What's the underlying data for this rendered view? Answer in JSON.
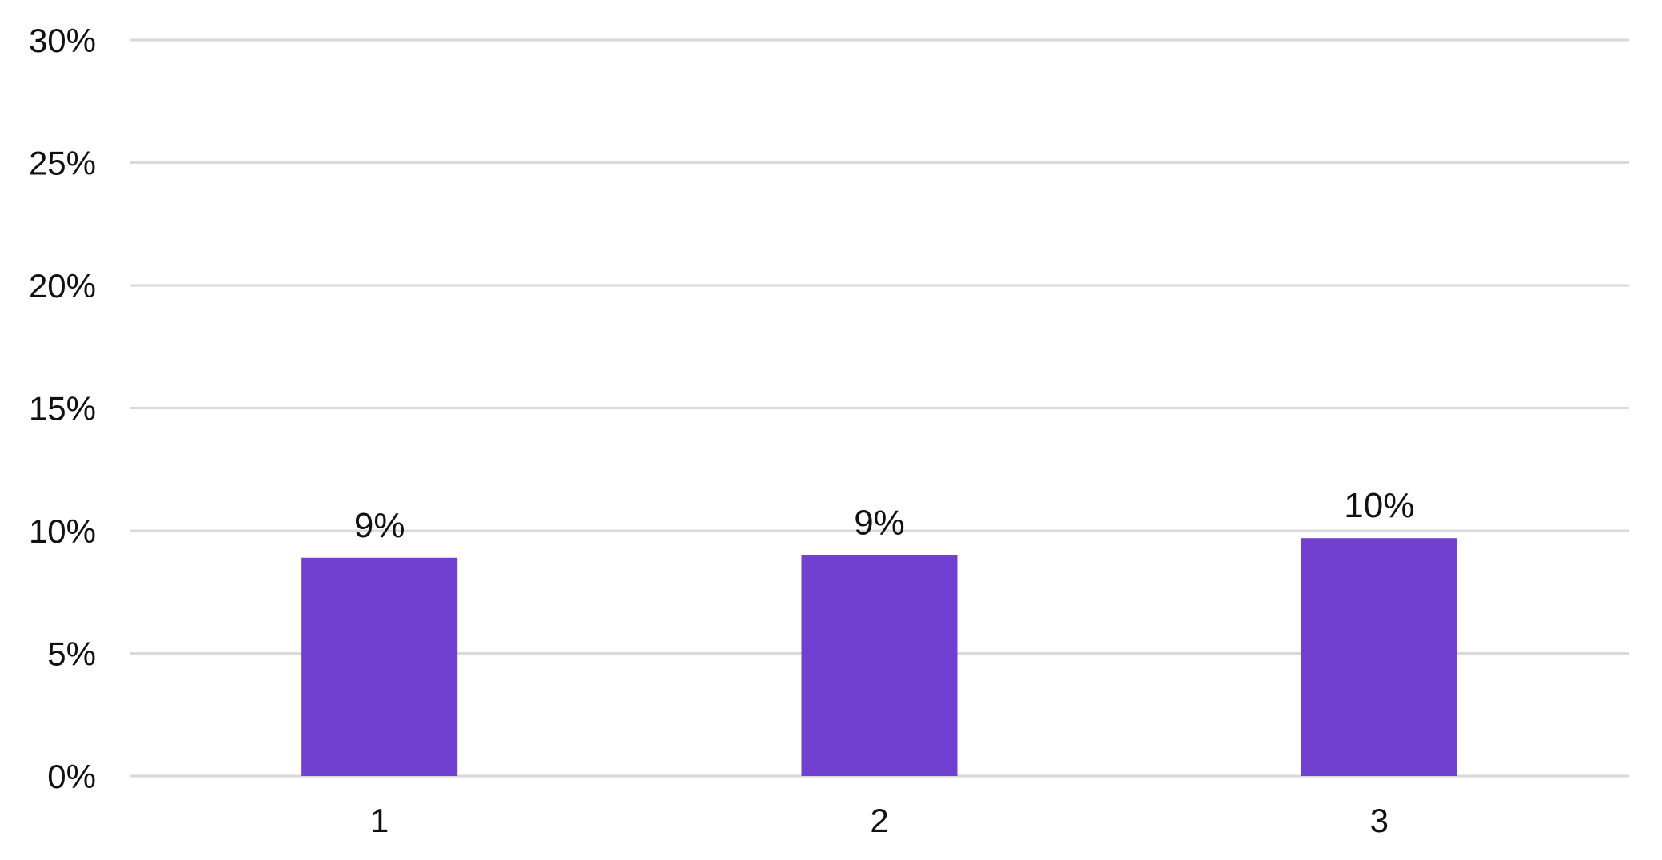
{
  "chart_data": {
    "type": "bar",
    "categories": [
      "1",
      "2",
      "3"
    ],
    "values": [
      8.9,
      9.0,
      9.7
    ],
    "data_labels": [
      "9%",
      "9%",
      "10%"
    ],
    "y_ticks": [
      "0%",
      "5%",
      "10%",
      "15%",
      "20%",
      "25%",
      "30%"
    ],
    "ylim": [
      0,
      30
    ],
    "title": "",
    "xlabel": "",
    "ylabel": "",
    "grid": true,
    "legend": "none",
    "colors": {
      "bar": "#7140d0",
      "grid": "#d9d9d9",
      "axis": "#d9d9d9",
      "text": "#111111"
    }
  }
}
